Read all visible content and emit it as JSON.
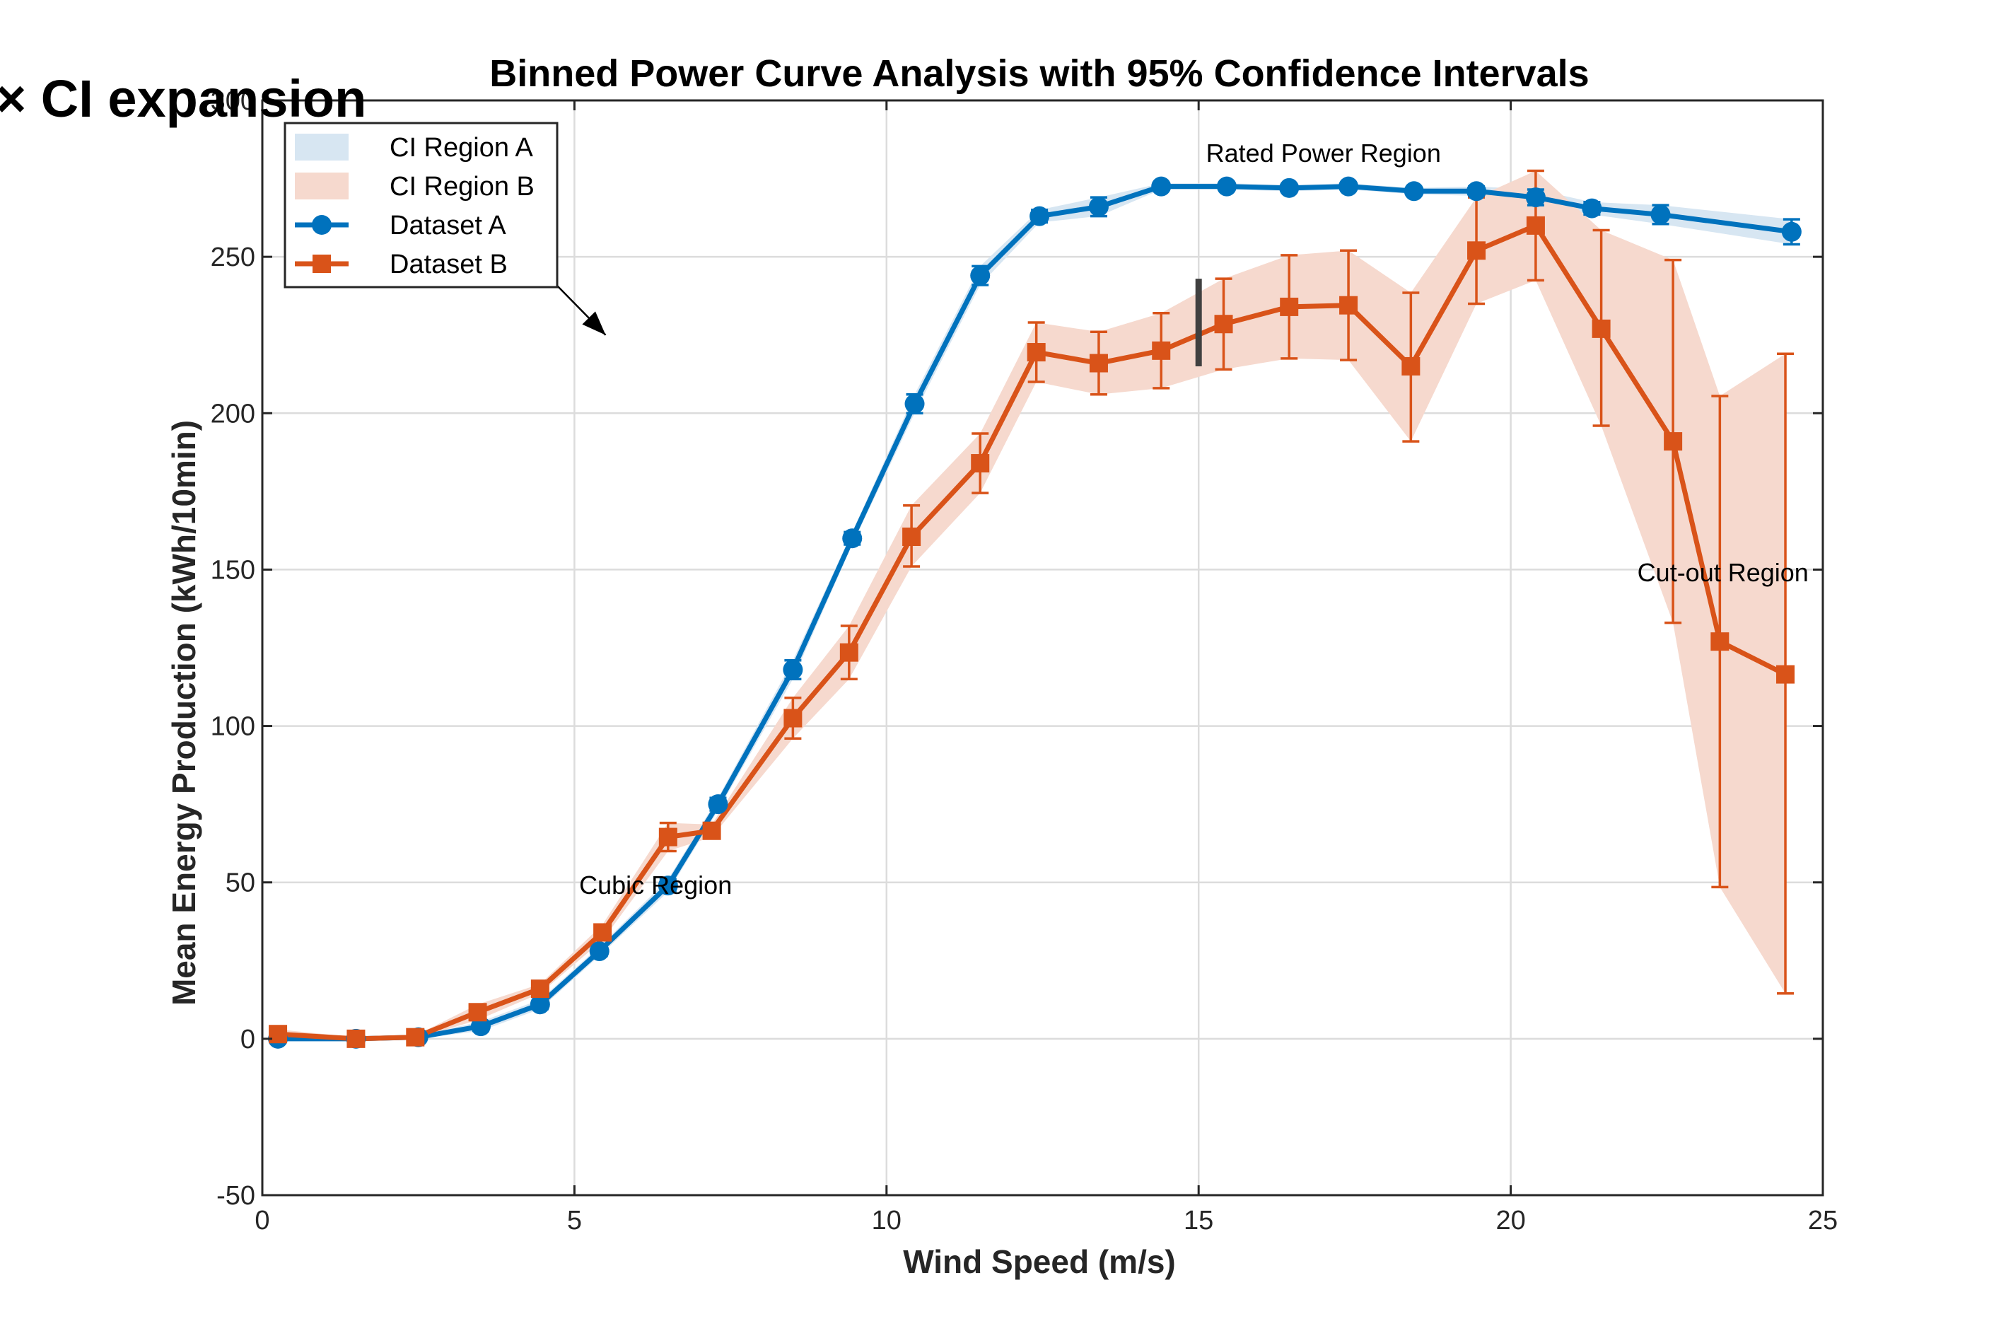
{
  "chart_data": {
    "type": "line",
    "title": "Binned Power Curve Analysis with 95% Confidence Intervals",
    "xlabel": "Wind Speed (m/s)",
    "ylabel": "Mean Energy Production (kWh/10min)",
    "xlim": [
      0,
      25
    ],
    "ylim": [
      -50,
      300
    ],
    "xticks": [
      0,
      5,
      10,
      15,
      20,
      25
    ],
    "yticks": [
      -50,
      0,
      50,
      100,
      150,
      200,
      250,
      300
    ],
    "grid": true,
    "legend_position": "top-left",
    "legend": [
      "CI Region A",
      "CI Region B",
      "Dataset A",
      "Dataset B"
    ],
    "overlay_text": "× CI expansion",
    "annotations": [
      {
        "text": "Rated Power Region",
        "x": 17.0,
        "y": 283
      },
      {
        "text": "Cubic Region",
        "x": 6.3,
        "y": 49
      },
      {
        "text": "Cut-out Region",
        "x": 23.4,
        "y": 149
      }
    ],
    "arrow": {
      "from": [
        2.3,
        290
      ],
      "to": [
        5.5,
        225
      ]
    },
    "marker_bar": {
      "x": 15.0,
      "y_range": [
        215,
        243
      ]
    },
    "series": [
      {
        "name": "Dataset A",
        "color": "#0072BD",
        "marker": "circle",
        "x": [
          0.25,
          1.5,
          2.5,
          3.5,
          4.45,
          5.4,
          6.5,
          7.3,
          8.5,
          9.45,
          10.45,
          11.5,
          12.45,
          13.4,
          14.4,
          15.45,
          16.45,
          17.4,
          18.45,
          19.45,
          20.4,
          21.3,
          22.4,
          24.5
        ],
        "y": [
          0,
          0,
          0.5,
          4,
          11,
          28,
          49,
          75,
          118,
          160,
          203,
          244,
          263,
          266,
          272.5,
          272.5,
          272,
          272.5,
          271,
          271,
          269,
          265.5,
          263.5,
          258
        ],
        "ci_low": [
          0,
          0,
          0,
          2.5,
          9.5,
          26.5,
          47,
          73,
          115,
          158,
          200,
          241,
          261,
          263,
          271.5,
          271.5,
          271,
          271.5,
          270,
          269.5,
          266.5,
          263.5,
          260.5,
          254
        ],
        "ci_high": [
          0,
          0,
          1,
          5.5,
          12.5,
          29.5,
          51,
          77,
          121,
          162,
          206,
          247,
          265,
          269,
          273.5,
          273.5,
          273,
          273.5,
          272,
          272.5,
          271.5,
          267.5,
          266.5,
          262
        ]
      },
      {
        "name": "Dataset B",
        "color": "#D95319",
        "marker": "square",
        "x": [
          0.25,
          1.5,
          2.45,
          3.45,
          4.45,
          5.45,
          6.5,
          7.2,
          8.5,
          9.4,
          10.4,
          11.5,
          12.4,
          13.4,
          14.4,
          15.4,
          16.45,
          17.4,
          18.4,
          19.45,
          20.4,
          21.45,
          22.6,
          23.35,
          24.4
        ],
        "y": [
          1.5,
          0,
          0.5,
          8.5,
          16,
          34,
          64.5,
          66.5,
          102.5,
          123.5,
          160.5,
          184,
          219.5,
          216,
          220,
          228.5,
          234,
          234.5,
          215,
          252,
          260,
          227,
          191,
          127,
          116.5
        ],
        "ci_low": [
          0,
          -0.5,
          0,
          6,
          14.5,
          31.5,
          60,
          64.5,
          96,
          115,
          151,
          174.5,
          210,
          206,
          208,
          214,
          217.5,
          217,
          191,
          235,
          242.5,
          196,
          133,
          48.5,
          14.5
        ],
        "ci_high": [
          3,
          0.5,
          1,
          11,
          17.5,
          36.5,
          69,
          68.5,
          109,
          132,
          170.5,
          193.5,
          229,
          226,
          232,
          243,
          250.5,
          252,
          238.5,
          269,
          277.5,
          258.5,
          249,
          205.5,
          219
        ]
      }
    ]
  }
}
